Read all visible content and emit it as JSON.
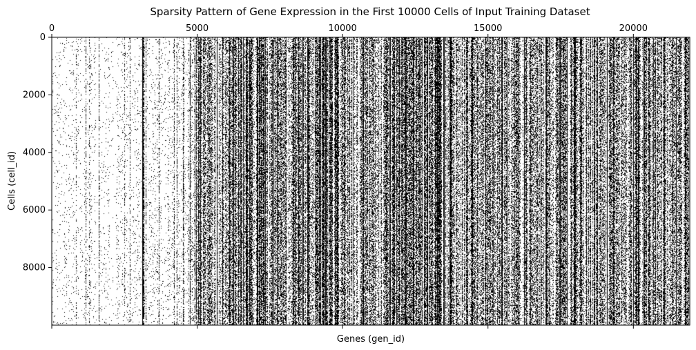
{
  "chart_data": {
    "type": "heatmap",
    "subtype": "sparsity-pattern",
    "title": "Sparsity Pattern of Gene Expression in the First 10000 Cells of Input Training Dataset",
    "xlabel": "Genes (gen_id)",
    "ylabel": "Cells (cell_id)",
    "xlim": [
      0,
      21940
    ],
    "ylim": [
      10000,
      0
    ],
    "x_tick_position": "top",
    "x_ticks": [
      0,
      5000,
      10000,
      15000,
      20000
    ],
    "x_tick_labels": [
      "0",
      "5000",
      "10000",
      "15000",
      "20000"
    ],
    "x_ticks_bottom_unlabeled": [
      0,
      5000,
      10000,
      15000,
      20000
    ],
    "y_ticks": [
      0,
      2000,
      4000,
      6000,
      8000
    ],
    "y_tick_labels": [
      "0",
      "2000",
      "4000",
      "6000",
      "8000"
    ],
    "colors": {
      "nonzero": "#000000",
      "zero": "#ffffff"
    },
    "grid": false,
    "density_profile_by_gene_range": [
      {
        "gene_range": [
          0,
          3100
        ],
        "density": 0.04
      },
      {
        "gene_range": [
          3100,
          3200
        ],
        "density": 0.9
      },
      {
        "gene_range": [
          3200,
          4700
        ],
        "density": 0.05
      },
      {
        "gene_range": [
          4700,
          5000
        ],
        "density": 0.2
      },
      {
        "gene_range": [
          5000,
          8600
        ],
        "density": 0.4
      },
      {
        "gene_range": [
          8600,
          8700
        ],
        "density": 0.9
      },
      {
        "gene_range": [
          8700,
          13200
        ],
        "density": 0.45
      },
      {
        "gene_range": [
          13200,
          13500
        ],
        "density": 0.85
      },
      {
        "gene_range": [
          13500,
          21940
        ],
        "density": 0.45
      }
    ]
  }
}
